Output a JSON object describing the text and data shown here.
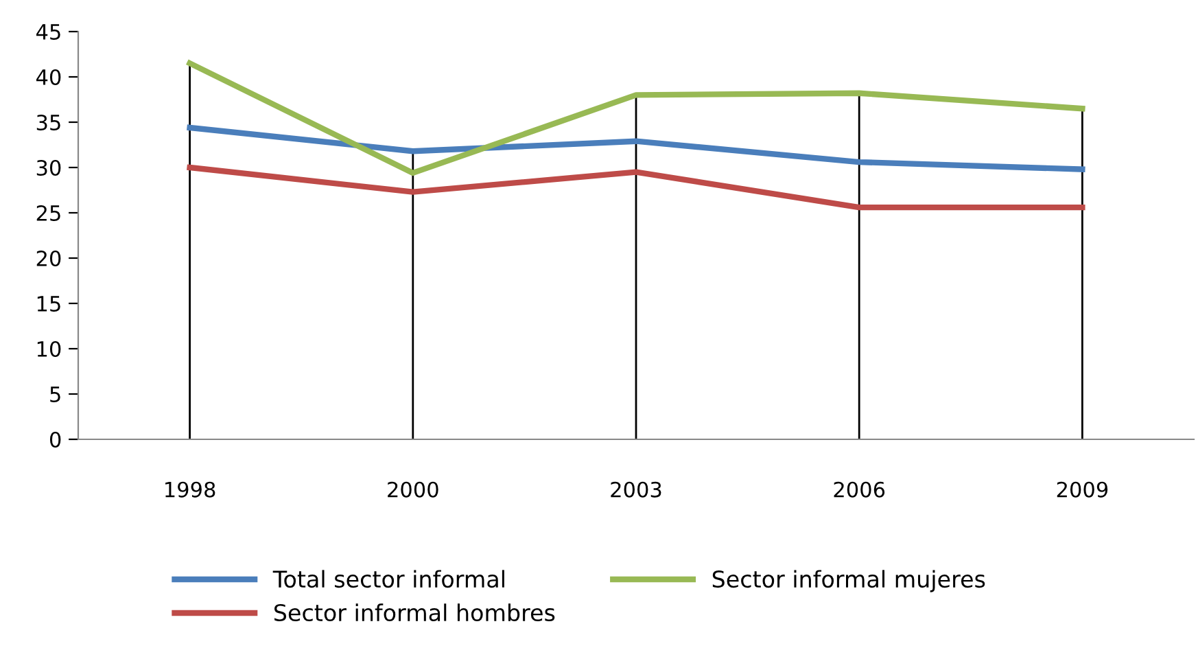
{
  "chart_data": {
    "type": "line",
    "categories": [
      "1998",
      "2000",
      "2003",
      "2006",
      "2009"
    ],
    "series": [
      {
        "name": "Total sector informal",
        "color": "#4a7ebb",
        "values": [
          34.4,
          31.8,
          32.9,
          30.6,
          29.8
        ]
      },
      {
        "name": "Sector informal hombres",
        "color": "#be4b48",
        "values": [
          30.0,
          27.3,
          29.5,
          25.6,
          25.6
        ]
      },
      {
        "name": "Sector informal mujeres",
        "color": "#98b954",
        "values": [
          41.5,
          29.4,
          38.0,
          38.2,
          36.5
        ]
      }
    ],
    "ylim": [
      0,
      45
    ],
    "yticks": [
      0,
      5,
      10,
      15,
      20,
      25,
      30,
      35,
      40,
      45
    ],
    "grid": "x",
    "legend": "bottom",
    "marker": "none",
    "line_style": "solid"
  }
}
